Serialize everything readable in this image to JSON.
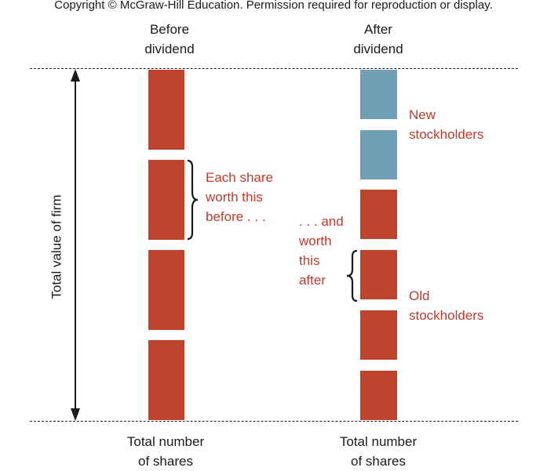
{
  "copyright": "Copyright © McGraw-Hill Education. Permission required for reproduction or display.",
  "before": {
    "heading": "Before\ndividend",
    "footer": "Total number\nof shares",
    "note": "Each share\nworth this\nbefore . . ."
  },
  "after": {
    "heading": "After\ndividend",
    "footer": "Total number\nof shares",
    "note": ". . . and\nworth\nthis\nafter",
    "new_label": "New\nstockholders",
    "old_label": "Old\nstockholders"
  },
  "axis_label": "Total value of firm",
  "colors": {
    "old_shares": "#c0432e",
    "new_shares": "#719fb6",
    "label_text": "#c0392b"
  }
}
